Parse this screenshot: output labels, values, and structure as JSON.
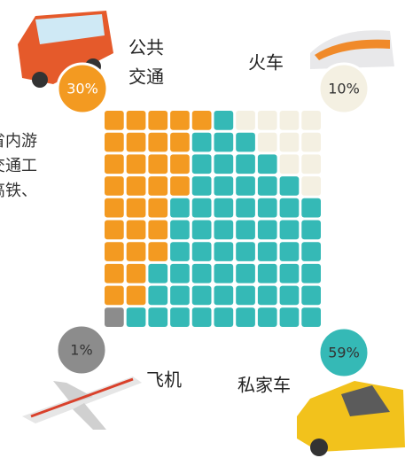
{
  "chart_data": {
    "type": "waffle",
    "side_text": [
      "省内游",
      "交通工",
      "高铁、"
    ],
    "grid_size": 10,
    "series": [
      {
        "name": [
          "公共",
          "交通"
        ],
        "values": [
          30
        ],
        "value_labels": [
          "30%"
        ],
        "color": "#f39a21"
      },
      {
        "name": [
          "火车"
        ],
        "values": [
          10
        ],
        "value_labels": [
          "10%"
        ],
        "color": "#f4f0e2"
      },
      {
        "name": [
          "飞机"
        ],
        "values": [
          1
        ],
        "value_labels": [
          "1%"
        ],
        "color": "#8c8c8c"
      },
      {
        "name": [
          "私家车"
        ],
        "values": [
          59
        ],
        "value_labels": [
          "59%"
        ],
        "color": "#35b9b6"
      }
    ]
  }
}
